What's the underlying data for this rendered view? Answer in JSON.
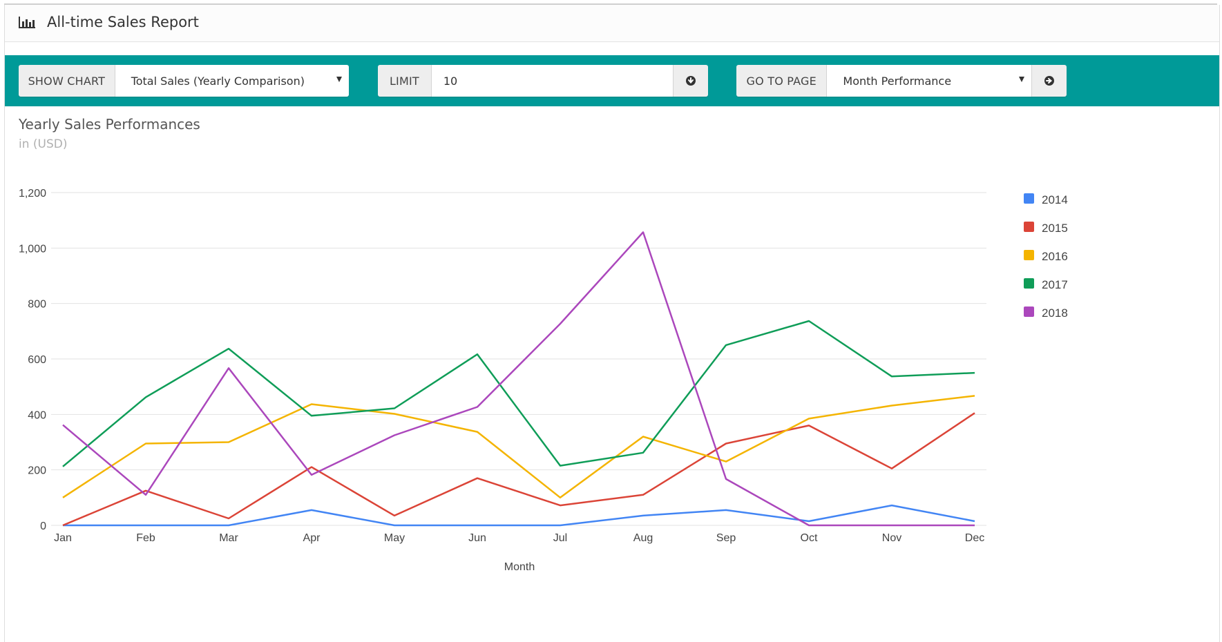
{
  "header": {
    "title": "All-time Sales Report",
    "icon": "bar-chart-icon"
  },
  "toolbar": {
    "show_chart_label": "SHOW CHART",
    "chart_select_value": "Total Sales (Yearly Comparison)",
    "limit_label": "LIMIT",
    "limit_value": "10",
    "limit_button_icon": "arrow-circle-down-icon",
    "go_to_page_label": "GO TO PAGE",
    "page_select_value": "Month Performance",
    "go_button_icon": "arrow-circle-right-icon",
    "accent_color": "#009a98"
  },
  "chart": {
    "title": "Yearly Sales Performances",
    "subtitle": "in (USD)"
  },
  "chart_data": {
    "type": "line",
    "title": "Yearly Sales Performances",
    "subtitle": "in (USD)",
    "xlabel": "Month",
    "ylabel": "",
    "categories": [
      "Jan",
      "Feb",
      "Mar",
      "Apr",
      "May",
      "Jun",
      "Jul",
      "Aug",
      "Sep",
      "Oct",
      "Nov",
      "Dec"
    ],
    "ylim": [
      0,
      1200
    ],
    "yticks": [
      0,
      200,
      400,
      600,
      800,
      1000,
      1200
    ],
    "ytick_labels": [
      "0",
      "200",
      "400",
      "600",
      "800",
      "1,000",
      "1,200"
    ],
    "grid": true,
    "legend_position": "right",
    "series": [
      {
        "name": "2014",
        "color": "#4285f4",
        "values": [
          0,
          0,
          0,
          55,
          0,
          0,
          0,
          35,
          55,
          15,
          72,
          15
        ]
      },
      {
        "name": "2015",
        "color": "#db4437",
        "values": [
          0,
          125,
          25,
          210,
          35,
          170,
          72,
          110,
          295,
          360,
          205,
          405
        ]
      },
      {
        "name": "2016",
        "color": "#f4b400",
        "values": [
          100,
          295,
          300,
          437,
          402,
          337,
          100,
          320,
          230,
          385,
          432,
          467
        ]
      },
      {
        "name": "2017",
        "color": "#0f9d58",
        "values": [
          212,
          462,
          637,
          395,
          422,
          617,
          215,
          262,
          650,
          737,
          537,
          550
        ]
      },
      {
        "name": "2018",
        "color": "#ab47bc",
        "values": [
          362,
          110,
          567,
          182,
          325,
          427,
          727,
          1057,
          167,
          0,
          0,
          0
        ]
      }
    ]
  }
}
